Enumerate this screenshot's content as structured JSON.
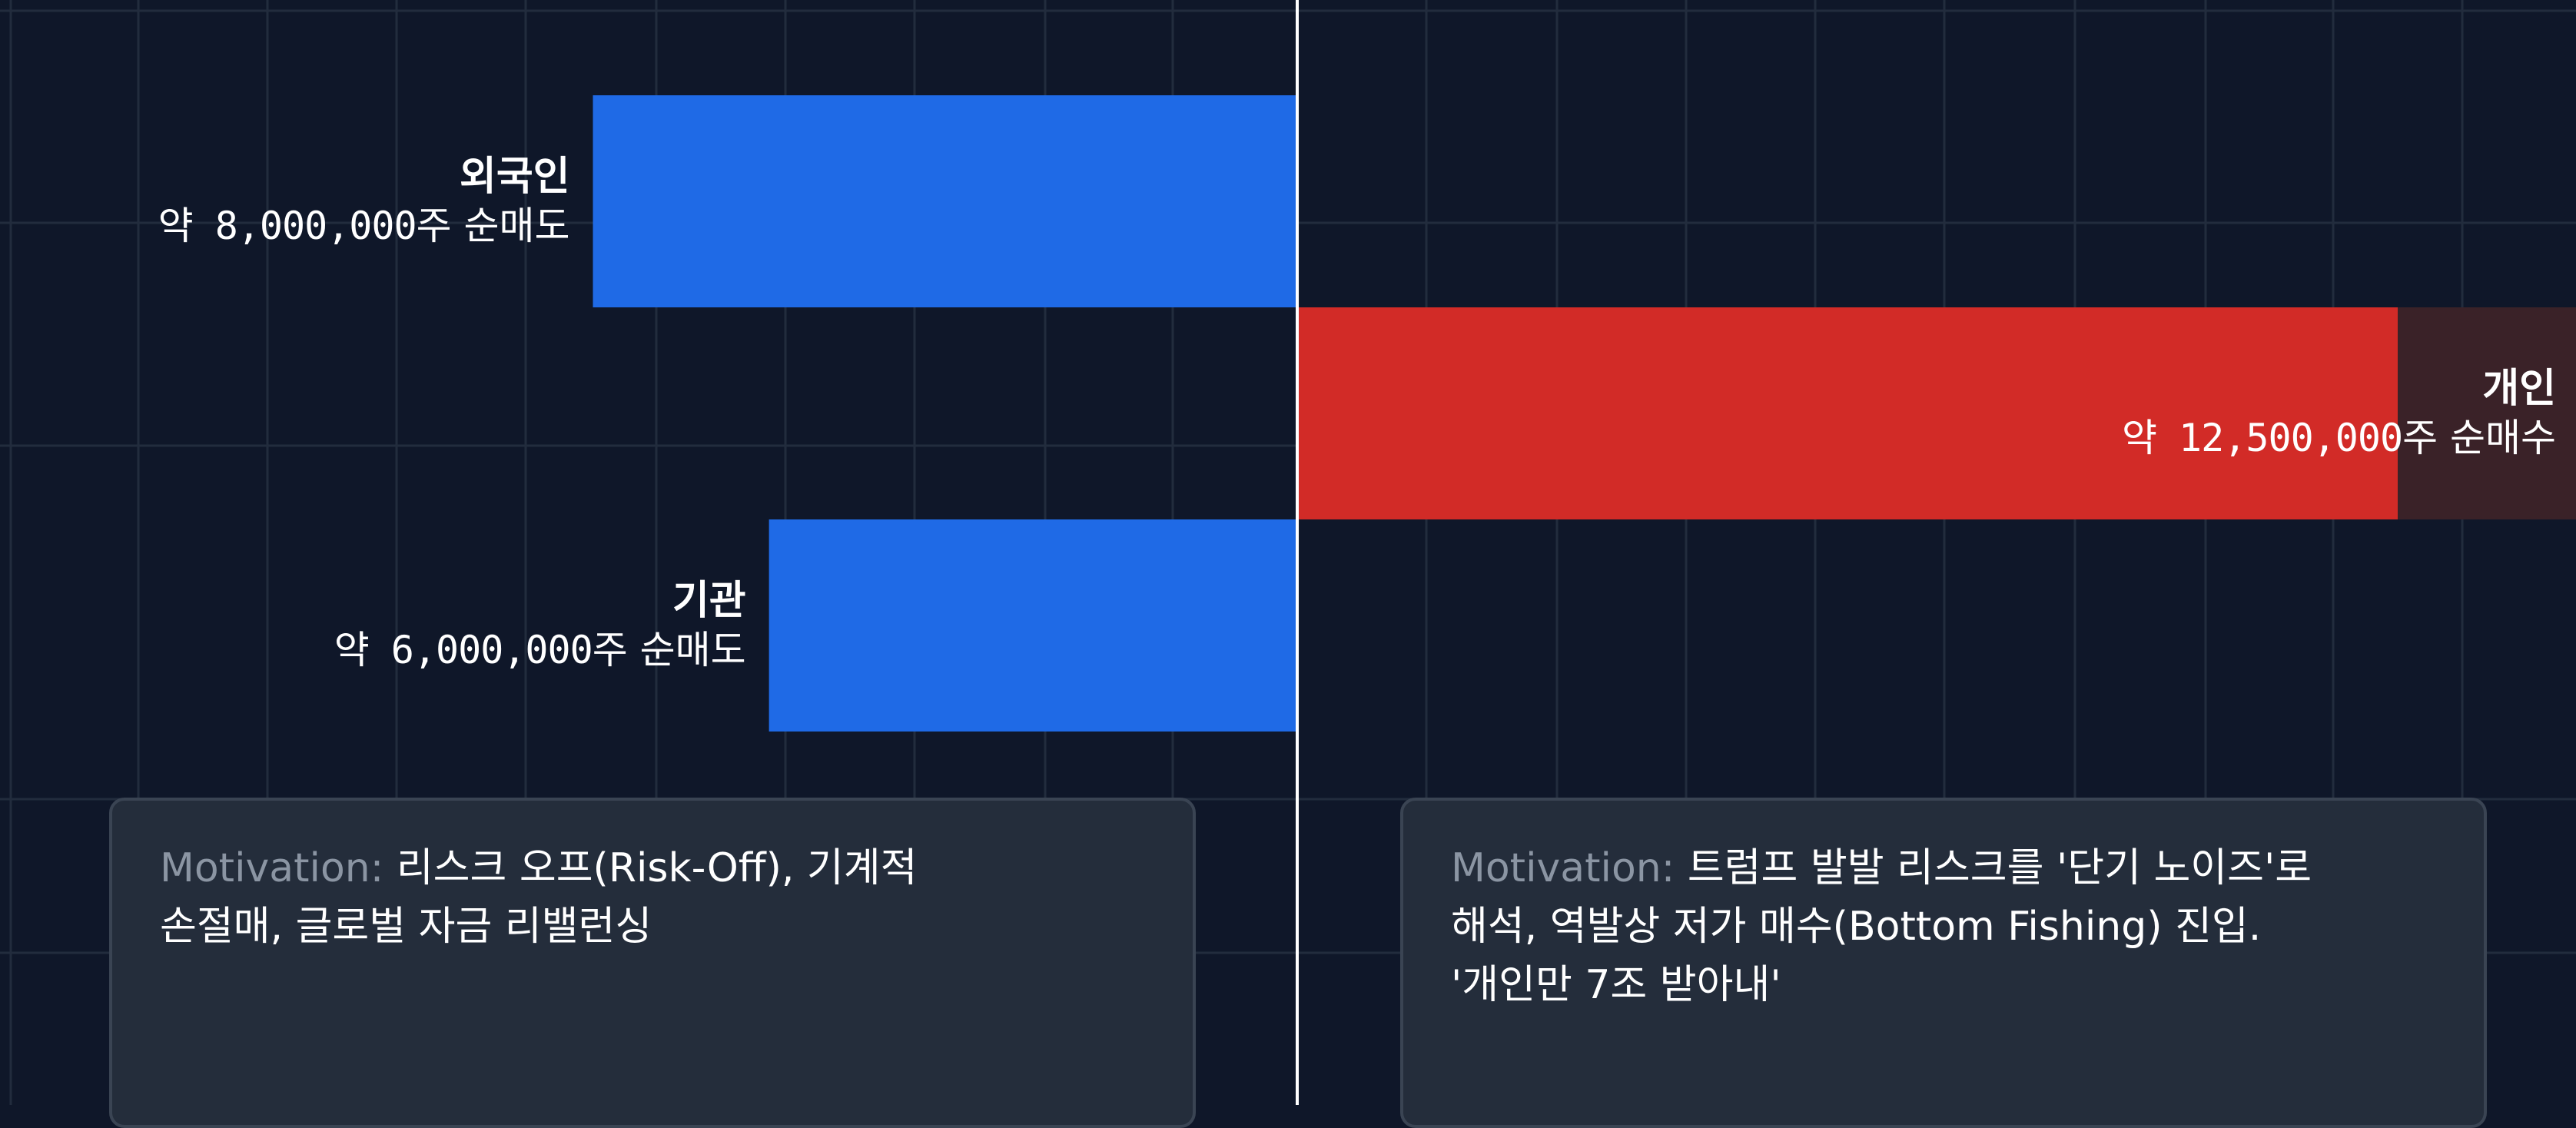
{
  "chart_data": {
    "type": "bar",
    "orientation": "horizontal-diverging",
    "title": "",
    "xlabel": "",
    "ylabel": "",
    "xlim": [
      -15000000,
      12500000
    ],
    "grid": true,
    "bars": [
      {
        "name": "외국인",
        "value": -8000000,
        "label": "약 8,000,000",
        "unit": "주 순매도",
        "color": "#1f6ae6"
      },
      {
        "name": "개인",
        "value": 12500000,
        "label": "약 12,500,000",
        "unit": "주 순매수",
        "color": "#d22b27"
      },
      {
        "name": "기관",
        "value": -6000000,
        "label": "약 6,000,000",
        "unit": "주 순매도",
        "color": "#1f6ae6"
      }
    ],
    "annotations": [
      {
        "prefix": "Motivation:",
        "lines": [
          "리스크 오프(Risk-Off), 기계적",
          "손절매, 글로벌 자금 리밸런싱"
        ]
      },
      {
        "prefix": "Motivation:",
        "lines": [
          "트럼프 발발 리스크를 '단기 노이즈'로",
          "해석, 역발상 저가 매수(Bottom Fishing) 진입.",
          "'개인만 7조 받아내'"
        ]
      }
    ]
  },
  "colors": {
    "background": "#0f1729",
    "grid": "#222c3d",
    "axis": "#ffffff",
    "sell": "#1f6ae6",
    "buy": "#d22b27",
    "label_shade": "#3a2228"
  }
}
